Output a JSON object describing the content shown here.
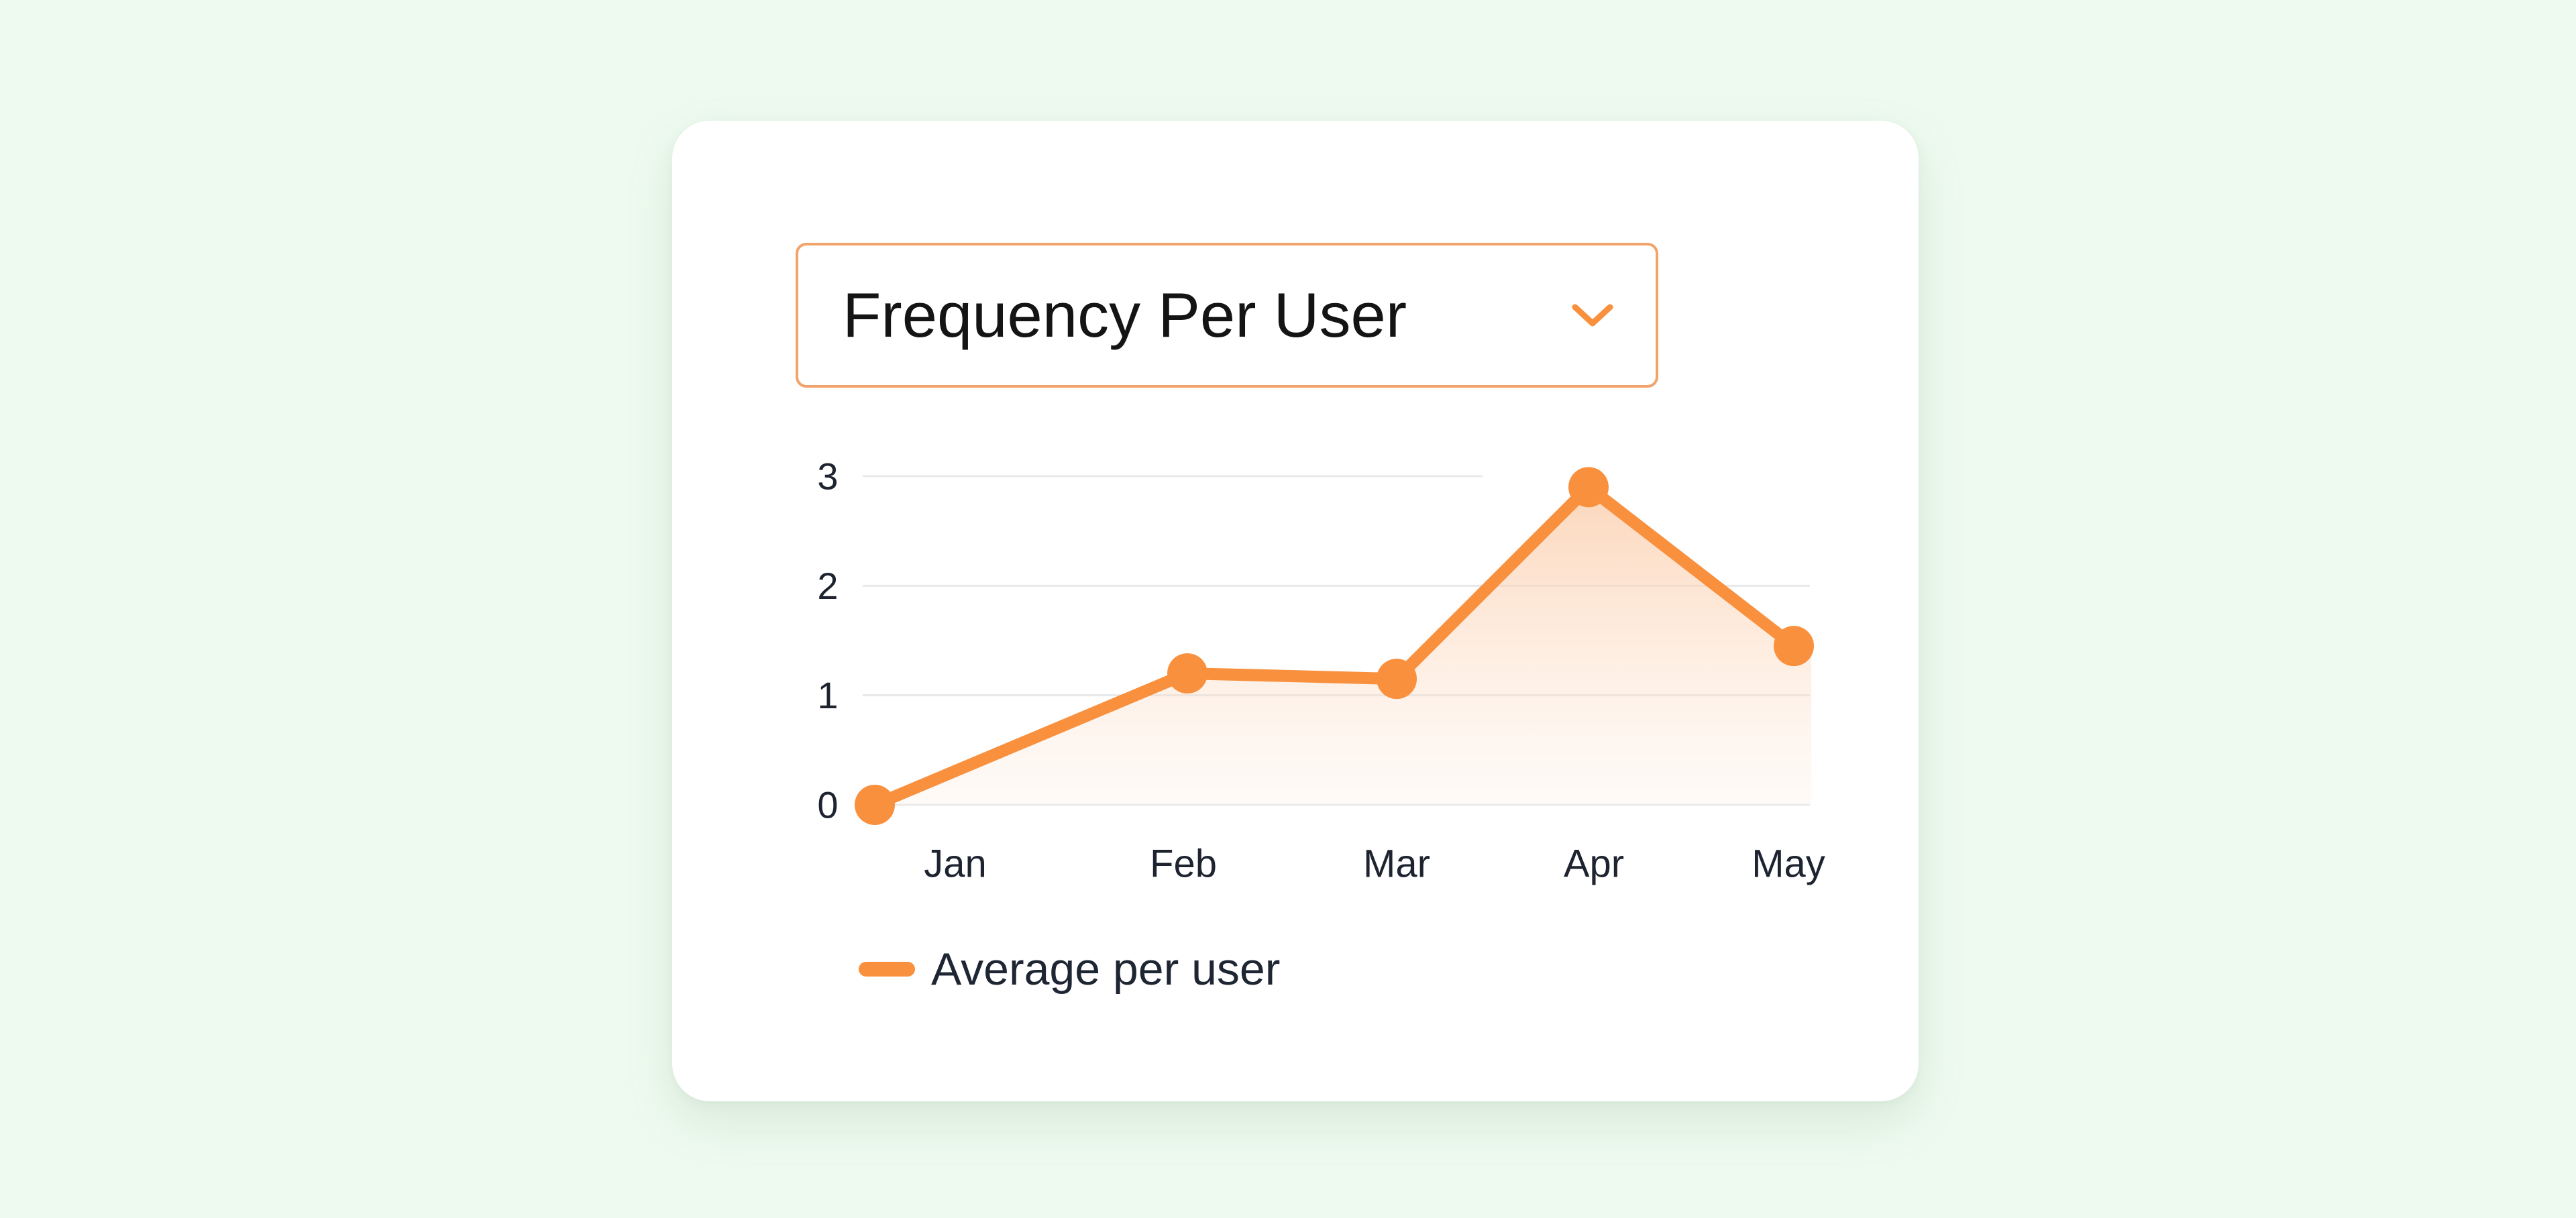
{
  "selector": {
    "label": "Frequency Per User",
    "icon": "chevron-down-icon"
  },
  "colors": {
    "accent": "#f8903e",
    "dropdown_border": "#f2a36a",
    "gridline": "#e7e9ea",
    "background": "#eefaef"
  },
  "chart_data": {
    "type": "line",
    "categories": [
      "Jan",
      "Feb",
      "Mar",
      "Apr",
      "May"
    ],
    "series": [
      {
        "name": "Average per user",
        "values": [
          0,
          1.2,
          1.15,
          2.9,
          1.45
        ]
      }
    ],
    "yticks": [
      "0",
      "1",
      "2",
      "3"
    ],
    "ylim": [
      0,
      3
    ],
    "area_fill": true,
    "grid": true,
    "legend_position": "bottom-left"
  }
}
